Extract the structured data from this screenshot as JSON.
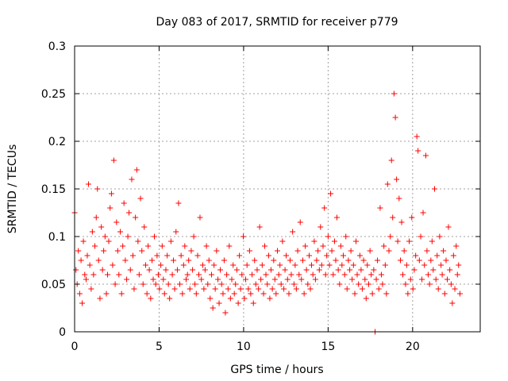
{
  "chart_data": {
    "type": "scatter",
    "title": "Day 083 of 2017, SRMTID for receiver p779",
    "xlabel": "GPS time / hours",
    "ylabel": "SRMTID / TECUs",
    "xlim": [
      0,
      24
    ],
    "ylim": [
      0,
      0.3
    ],
    "xticks": [
      0,
      5,
      10,
      15,
      20
    ],
    "xtick_labels": [
      "0",
      "5",
      "10",
      "15",
      "20"
    ],
    "yticks": [
      0,
      0.05,
      0.1,
      0.15,
      0.2,
      0.25,
      0.3
    ],
    "ytick_labels": [
      "0",
      "0.05",
      "0.1",
      "0.15",
      "0.2",
      "0.25",
      "0.3"
    ],
    "grid": true,
    "marker": "+",
    "marker_color": "#ff0000",
    "series": [
      {
        "name": "SRMTID",
        "x": [
          0.0,
          0.08,
          0.15,
          0.22,
          0.3,
          0.38,
          0.45,
          0.52,
          0.6,
          0.68,
          0.75,
          0.82,
          0.9,
          0.98,
          1.05,
          1.12,
          1.2,
          1.28,
          1.35,
          1.42,
          1.5,
          1.58,
          1.65,
          1.72,
          1.8,
          1.88,
          1.95,
          2.02,
          2.1,
          2.18,
          2.25,
          2.32,
          2.4,
          2.48,
          2.55,
          2.62,
          2.7,
          2.78,
          2.85,
          2.92,
          3.0,
          3.08,
          3.15,
          3.22,
          3.3,
          3.38,
          3.45,
          3.52,
          3.6,
          3.68,
          3.75,
          3.82,
          3.9,
          3.98,
          4.05,
          4.12,
          4.2,
          4.28,
          4.35,
          4.42,
          4.5,
          4.58,
          4.65,
          4.72,
          4.8,
          4.88,
          4.95,
          5.02,
          5.1,
          5.18,
          5.25,
          5.32,
          5.4,
          5.48,
          5.55,
          5.62,
          5.7,
          5.78,
          5.85,
          5.92,
          6.0,
          6.08,
          6.15,
          6.22,
          6.3,
          6.38,
          6.45,
          6.52,
          6.6,
          6.68,
          6.75,
          6.82,
          6.9,
          6.98,
          7.05,
          7.12,
          7.2,
          7.28,
          7.35,
          7.42,
          7.5,
          7.58,
          7.65,
          7.72,
          7.8,
          7.88,
          7.95,
          8.02,
          8.1,
          8.18,
          8.25,
          8.32,
          8.4,
          8.48,
          8.55,
          8.62,
          8.7,
          8.78,
          8.85,
          8.92,
          9.0,
          9.08,
          9.15,
          9.22,
          9.3,
          9.38,
          9.45,
          9.52,
          9.6,
          9.68,
          9.75,
          9.82,
          9.9,
          9.98,
          10.05,
          10.12,
          10.2,
          10.28,
          10.35,
          10.42,
          10.5,
          10.58,
          10.65,
          10.72,
          10.8,
          10.88,
          10.95,
          11.02,
          11.1,
          11.18,
          11.25,
          11.32,
          11.4,
          11.48,
          11.55,
          11.62,
          11.7,
          11.78,
          11.85,
          11.92,
          12.0,
          12.08,
          12.15,
          12.22,
          12.3,
          12.38,
          12.45,
          12.52,
          12.6,
          12.68,
          12.75,
          12.82,
          12.9,
          12.98,
          13.05,
          13.12,
          13.2,
          13.28,
          13.35,
          13.42,
          13.5,
          13.58,
          13.65,
          13.72,
          13.8,
          13.88,
          13.95,
          14.02,
          14.1,
          14.18,
          14.25,
          14.32,
          14.4,
          14.48,
          14.55,
          14.62,
          14.7,
          14.78,
          14.85,
          14.92,
          15.0,
          15.08,
          15.15,
          15.22,
          15.3,
          15.38,
          15.45,
          15.52,
          15.6,
          15.68,
          15.75,
          15.82,
          15.9,
          15.98,
          16.05,
          16.12,
          16.2,
          16.28,
          16.35,
          16.42,
          16.5,
          16.58,
          16.65,
          16.72,
          16.8,
          16.88,
          16.95,
          17.02,
          17.1,
          17.18,
          17.25,
          17.32,
          17.4,
          17.48,
          17.55,
          17.62,
          17.7,
          17.78,
          17.85,
          17.92,
          18.0,
          18.08,
          18.15,
          18.22,
          18.3,
          18.38,
          18.45,
          18.52,
          18.6,
          18.68,
          18.75,
          18.82,
          18.9,
          18.98,
          19.05,
          19.12,
          19.2,
          19.28,
          19.35,
          19.42,
          19.5,
          19.58,
          19.65,
          19.72,
          19.8,
          19.88,
          19.95,
          20.02,
          20.1,
          20.18,
          20.25,
          20.32,
          20.4,
          20.48,
          20.55,
          20.62,
          20.7,
          20.78,
          20.85,
          20.92,
          21.0,
          21.08,
          21.15,
          21.22,
          21.3,
          21.38,
          21.45,
          21.52,
          21.6,
          21.68,
          21.75,
          21.82,
          21.9,
          21.98,
          22.05,
          22.12,
          22.2,
          22.28,
          22.35,
          22.42,
          22.5,
          22.58,
          22.65,
          22.72,
          22.8
        ],
        "y": [
          0.125,
          0.065,
          0.05,
          0.085,
          0.04,
          0.075,
          0.03,
          0.095,
          0.06,
          0.055,
          0.08,
          0.155,
          0.07,
          0.045,
          0.105,
          0.06,
          0.09,
          0.12,
          0.15,
          0.075,
          0.035,
          0.11,
          0.065,
          0.085,
          0.1,
          0.04,
          0.06,
          0.095,
          0.13,
          0.145,
          0.07,
          0.18,
          0.05,
          0.115,
          0.085,
          0.06,
          0.105,
          0.04,
          0.09,
          0.135,
          0.075,
          0.055,
          0.1,
          0.125,
          0.065,
          0.16,
          0.08,
          0.045,
          0.12,
          0.17,
          0.095,
          0.06,
          0.14,
          0.085,
          0.05,
          0.11,
          0.07,
          0.04,
          0.09,
          0.065,
          0.035,
          0.075,
          0.055,
          0.1,
          0.05,
          0.08,
          0.06,
          0.045,
          0.07,
          0.09,
          0.055,
          0.04,
          0.065,
          0.08,
          0.05,
          0.035,
          0.095,
          0.06,
          0.075,
          0.045,
          0.105,
          0.065,
          0.135,
          0.05,
          0.08,
          0.04,
          0.07,
          0.09,
          0.055,
          0.06,
          0.075,
          0.045,
          0.085,
          0.065,
          0.1,
          0.05,
          0.04,
          0.08,
          0.06,
          0.12,
          0.055,
          0.07,
          0.045,
          0.065,
          0.09,
          0.05,
          0.075,
          0.035,
          0.06,
          0.025,
          0.07,
          0.045,
          0.085,
          0.055,
          0.03,
          0.065,
          0.05,
          0.04,
          0.075,
          0.02,
          0.06,
          0.045,
          0.09,
          0.035,
          0.055,
          0.07,
          0.04,
          0.05,
          0.065,
          0.03,
          0.08,
          0.045,
          0.06,
          0.1,
          0.035,
          0.055,
          0.07,
          0.045,
          0.085,
          0.04,
          0.06,
          0.03,
          0.075,
          0.05,
          0.065,
          0.045,
          0.11,
          0.055,
          0.07,
          0.04,
          0.09,
          0.06,
          0.05,
          0.08,
          0.035,
          0.065,
          0.045,
          0.075,
          0.055,
          0.04,
          0.085,
          0.06,
          0.07,
          0.05,
          0.095,
          0.045,
          0.065,
          0.08,
          0.055,
          0.04,
          0.075,
          0.06,
          0.105,
          0.05,
          0.07,
          0.045,
          0.085,
          0.06,
          0.115,
          0.055,
          0.075,
          0.04,
          0.09,
          0.065,
          0.05,
          0.08,
          0.045,
          0.07,
          0.06,
          0.095,
          0.055,
          0.075,
          0.085,
          0.065,
          0.11,
          0.07,
          0.09,
          0.13,
          0.06,
          0.08,
          0.1,
          0.07,
          0.145,
          0.085,
          0.06,
          0.095,
          0.075,
          0.12,
          0.065,
          0.05,
          0.09,
          0.07,
          0.08,
          0.06,
          0.1,
          0.045,
          0.075,
          0.065,
          0.085,
          0.055,
          0.07,
          0.04,
          0.095,
          0.06,
          0.05,
          0.08,
          0.065,
          0.045,
          0.075,
          0.055,
          0.035,
          0.07,
          0.05,
          0.085,
          0.06,
          0.04,
          0.065,
          0.0,
          0.055,
          0.075,
          0.045,
          0.13,
          0.06,
          0.05,
          0.09,
          0.07,
          0.04,
          0.155,
          0.085,
          0.1,
          0.18,
          0.12,
          0.25,
          0.225,
          0.16,
          0.095,
          0.14,
          0.075,
          0.115,
          0.06,
          0.085,
          0.05,
          0.07,
          0.04,
          0.095,
          0.055,
          0.12,
          0.045,
          0.065,
          0.08,
          0.205,
          0.19,
          0.075,
          0.1,
          0.055,
          0.125,
          0.07,
          0.185,
          0.085,
          0.06,
          0.05,
          0.075,
          0.095,
          0.065,
          0.15,
          0.055,
          0.08,
          0.045,
          0.1,
          0.07,
          0.06,
          0.085,
          0.04,
          0.075,
          0.055,
          0.11,
          0.065,
          0.05,
          0.03,
          0.08,
          0.045,
          0.09,
          0.06,
          0.07,
          0.04
        ]
      }
    ]
  }
}
